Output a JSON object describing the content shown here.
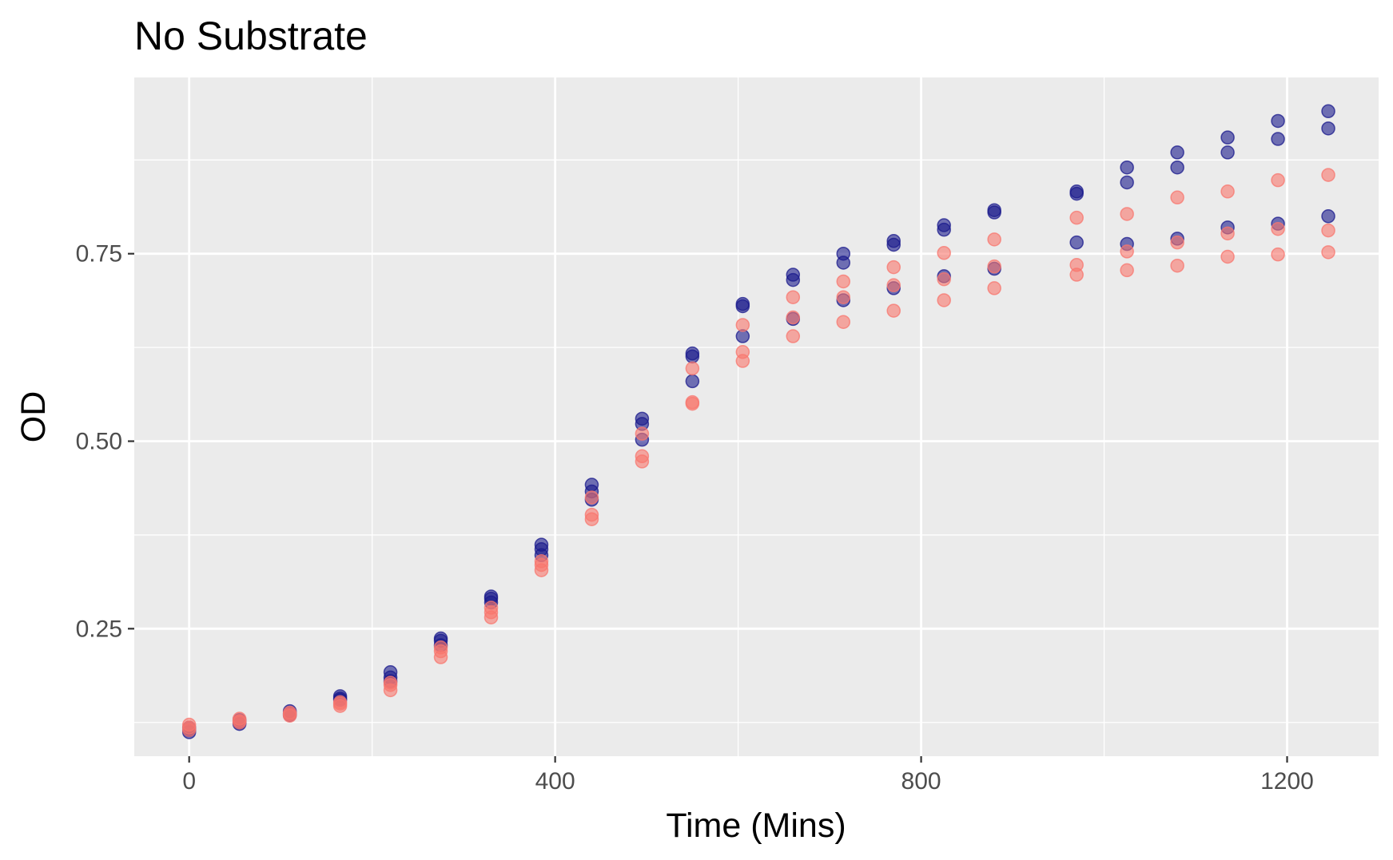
{
  "chart_data": {
    "type": "scatter",
    "title": "No Substrate",
    "xlabel": "Time (Mins)",
    "ylabel": "OD",
    "xlim": [
      -60,
      1300
    ],
    "ylim": [
      0.08,
      0.985
    ],
    "x_ticks": [
      0,
      400,
      800,
      1200
    ],
    "x_tick_labels": [
      "0",
      "400",
      "800",
      "1200"
    ],
    "y_ticks": [
      0.25,
      0.5,
      0.75
    ],
    "y_tick_labels": [
      "0.25",
      "0.50",
      "0.75"
    ],
    "grid": true,
    "legend": "none",
    "colors": {
      "panel_background": "#ebebeb",
      "grid_line": "#ffffff",
      "series_blue": "#1a1a8c",
      "series_red": "#f8766d"
    },
    "series": [
      {
        "color": "#1a1a8c",
        "points": [
          [
            0,
            0.115
          ],
          [
            0,
            0.112
          ],
          [
            0,
            0.118
          ],
          [
            55,
            0.128
          ],
          [
            55,
            0.125
          ],
          [
            55,
            0.123
          ],
          [
            110,
            0.14
          ],
          [
            110,
            0.137
          ],
          [
            110,
            0.135
          ],
          [
            165,
            0.16
          ],
          [
            165,
            0.157
          ],
          [
            165,
            0.155
          ],
          [
            220,
            0.192
          ],
          [
            220,
            0.185
          ],
          [
            220,
            0.18
          ],
          [
            275,
            0.237
          ],
          [
            275,
            0.234
          ],
          [
            275,
            0.228
          ],
          [
            330,
            0.293
          ],
          [
            330,
            0.29
          ],
          [
            330,
            0.285
          ],
          [
            385,
            0.362
          ],
          [
            385,
            0.356
          ],
          [
            385,
            0.348
          ],
          [
            440,
            0.442
          ],
          [
            440,
            0.433
          ],
          [
            440,
            0.422
          ],
          [
            495,
            0.53
          ],
          [
            495,
            0.523
          ],
          [
            495,
            0.502
          ],
          [
            550,
            0.617
          ],
          [
            550,
            0.613
          ],
          [
            550,
            0.58
          ],
          [
            605,
            0.683
          ],
          [
            605,
            0.68
          ],
          [
            605,
            0.64
          ],
          [
            660,
            0.722
          ],
          [
            660,
            0.715
          ],
          [
            660,
            0.663
          ],
          [
            715,
            0.75
          ],
          [
            715,
            0.738
          ],
          [
            715,
            0.688
          ],
          [
            770,
            0.767
          ],
          [
            770,
            0.762
          ],
          [
            770,
            0.704
          ],
          [
            825,
            0.788
          ],
          [
            825,
            0.782
          ],
          [
            825,
            0.72
          ],
          [
            880,
            0.808
          ],
          [
            880,
            0.805
          ],
          [
            880,
            0.73
          ],
          [
            970,
            0.833
          ],
          [
            970,
            0.83
          ],
          [
            970,
            0.765
          ],
          [
            1025,
            0.865
          ],
          [
            1025,
            0.845
          ],
          [
            1025,
            0.763
          ],
          [
            1080,
            0.885
          ],
          [
            1080,
            0.865
          ],
          [
            1080,
            0.77
          ],
          [
            1135,
            0.905
          ],
          [
            1135,
            0.885
          ],
          [
            1135,
            0.785
          ],
          [
            1190,
            0.927
          ],
          [
            1190,
            0.903
          ],
          [
            1190,
            0.79
          ],
          [
            1245,
            0.94
          ],
          [
            1245,
            0.917
          ],
          [
            1245,
            0.8
          ]
        ]
      },
      {
        "color": "#f8766d",
        "points": [
          [
            0,
            0.122
          ],
          [
            0,
            0.118
          ],
          [
            0,
            0.115
          ],
          [
            55,
            0.13
          ],
          [
            55,
            0.127
          ],
          [
            55,
            0.125
          ],
          [
            110,
            0.138
          ],
          [
            110,
            0.136
          ],
          [
            110,
            0.134
          ],
          [
            165,
            0.152
          ],
          [
            165,
            0.15
          ],
          [
            165,
            0.147
          ],
          [
            220,
            0.178
          ],
          [
            220,
            0.175
          ],
          [
            220,
            0.168
          ],
          [
            275,
            0.225
          ],
          [
            275,
            0.22
          ],
          [
            275,
            0.212
          ],
          [
            330,
            0.278
          ],
          [
            330,
            0.272
          ],
          [
            330,
            0.265
          ],
          [
            385,
            0.34
          ],
          [
            385,
            0.335
          ],
          [
            385,
            0.328
          ],
          [
            440,
            0.425
          ],
          [
            440,
            0.402
          ],
          [
            440,
            0.396
          ],
          [
            495,
            0.51
          ],
          [
            495,
            0.48
          ],
          [
            495,
            0.473
          ],
          [
            550,
            0.597
          ],
          [
            550,
            0.552
          ],
          [
            550,
            0.55
          ],
          [
            605,
            0.655
          ],
          [
            605,
            0.619
          ],
          [
            605,
            0.607
          ],
          [
            660,
            0.692
          ],
          [
            660,
            0.665
          ],
          [
            660,
            0.64
          ],
          [
            715,
            0.713
          ],
          [
            715,
            0.692
          ],
          [
            715,
            0.659
          ],
          [
            770,
            0.732
          ],
          [
            770,
            0.708
          ],
          [
            770,
            0.674
          ],
          [
            825,
            0.751
          ],
          [
            825,
            0.716
          ],
          [
            825,
            0.688
          ],
          [
            880,
            0.769
          ],
          [
            880,
            0.733
          ],
          [
            880,
            0.704
          ],
          [
            970,
            0.798
          ],
          [
            970,
            0.735
          ],
          [
            970,
            0.722
          ],
          [
            1025,
            0.803
          ],
          [
            1025,
            0.753
          ],
          [
            1025,
            0.728
          ],
          [
            1080,
            0.825
          ],
          [
            1080,
            0.765
          ],
          [
            1080,
            0.734
          ],
          [
            1135,
            0.833
          ],
          [
            1135,
            0.777
          ],
          [
            1135,
            0.746
          ],
          [
            1190,
            0.848
          ],
          [
            1190,
            0.783
          ],
          [
            1190,
            0.749
          ],
          [
            1245,
            0.855
          ],
          [
            1245,
            0.781
          ],
          [
            1245,
            0.752
          ]
        ]
      }
    ]
  }
}
